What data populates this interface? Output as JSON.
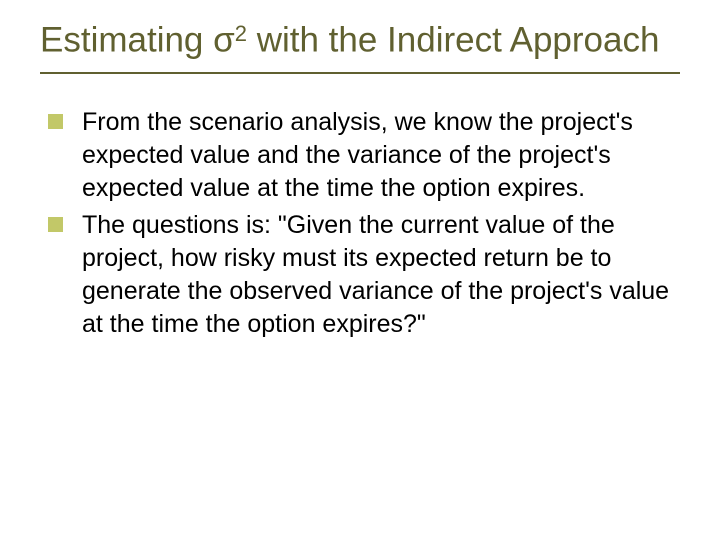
{
  "slide": {
    "title_prefix": "Estimating ",
    "title_sigma": "σ",
    "title_exp": "2",
    "title_suffix": " with the Indirect Approach",
    "title_color": "#606030",
    "title_fontsize": 35,
    "underline_color": "#606030",
    "background": "#ffffff",
    "bullets": [
      "From the scenario analysis, we know the project's expected value and the variance of the project's expected value at the time the option expires.",
      "The questions is: \"Given the current value of the project, how risky must its expected return be to generate the observed variance of the project's value at the time the option expires?\""
    ],
    "bullet_marker_color": "#c2c868",
    "bullet_fontsize": 25,
    "bullet_text_color": "#000000"
  }
}
